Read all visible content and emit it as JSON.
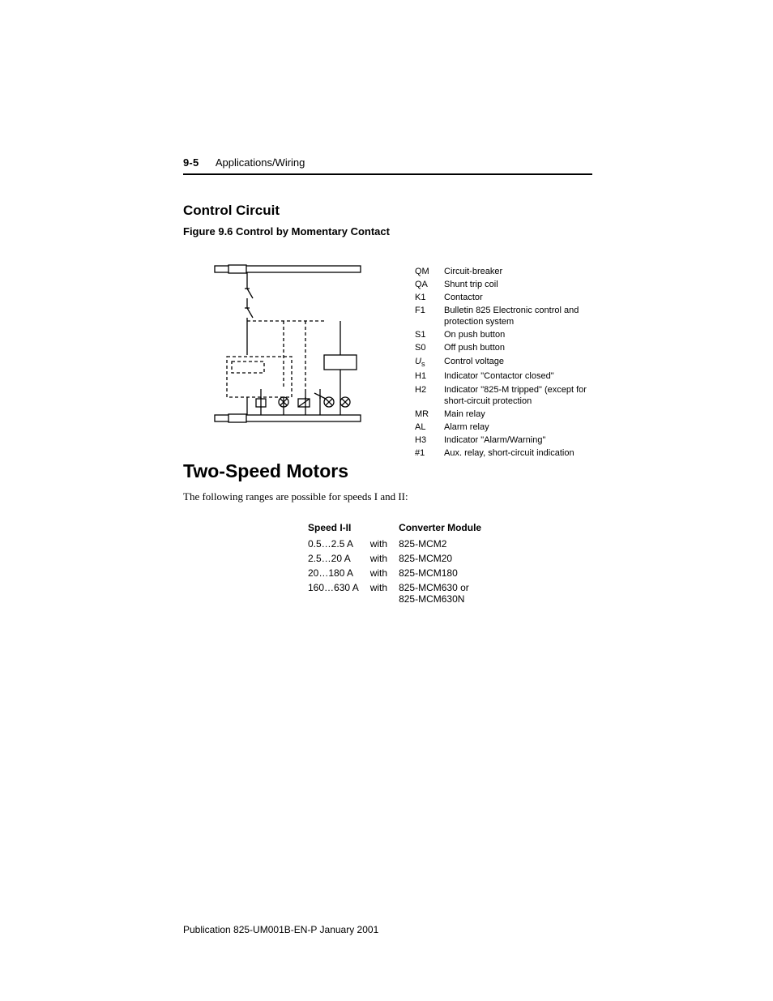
{
  "header": {
    "page_number": "9-5",
    "chapter_title": "Applications/Wiring"
  },
  "section": {
    "heading": "Control Circuit",
    "figure_caption": "Figure 9.6 Control by Momentary Contact"
  },
  "legend": {
    "items": [
      {
        "sym": "QM",
        "sym_italic": false,
        "desc": "Circuit-breaker"
      },
      {
        "sym": "QA",
        "sym_italic": false,
        "desc": "Shunt trip coil"
      },
      {
        "sym": "K1",
        "sym_italic": false,
        "desc": "Contactor"
      },
      {
        "sym": "F1",
        "sym_italic": false,
        "desc": "Bulletin 825 Electronic control and protection system"
      },
      {
        "sym": "S1",
        "sym_italic": false,
        "desc": "On push button"
      },
      {
        "sym": "S0",
        "sym_italic": false,
        "desc": "Off push button"
      },
      {
        "sym": "Us",
        "sym_italic": true,
        "desc": "Control voltage"
      },
      {
        "sym": "H1",
        "sym_italic": false,
        "desc": "Indicator \"Contactor closed\""
      },
      {
        "sym": "H2",
        "sym_italic": false,
        "desc": "Indicator \"825-M tripped\" (except for short-circuit protection"
      },
      {
        "sym": "MR",
        "sym_italic": false,
        "desc": "Main relay"
      },
      {
        "sym": "AL",
        "sym_italic": false,
        "desc": "Alarm relay"
      },
      {
        "sym": "H3",
        "sym_italic": false,
        "desc": "Indicator \"Alarm/Warning\""
      },
      {
        "sym": "#1",
        "sym_italic": false,
        "desc": "Aux. relay, short-circuit indication"
      }
    ]
  },
  "two_speed": {
    "heading": "Two-Speed Motors",
    "intro": "The following ranges are possible for speeds I and II:",
    "table": {
      "col_speed": "Speed I-II",
      "col_conv": "Converter Module",
      "with": "with",
      "rows": [
        {
          "speed": "0.5…2.5 A",
          "module": "825-MCM2"
        },
        {
          "speed": "2.5…20 A",
          "module": "825-MCM20"
        },
        {
          "speed": "20…180 A",
          "module": "825-MCM180"
        },
        {
          "speed": "160…630 A",
          "module": "825-MCM630 or 825-MCM630N"
        }
      ]
    }
  },
  "footer": {
    "pub": "Publication 825-UM001B-EN-P  January 2001"
  },
  "diagram_style": {
    "stroke": "#000000",
    "dash": "4,3",
    "stroke_width": 1.3,
    "stroke_width_bold": 2
  }
}
